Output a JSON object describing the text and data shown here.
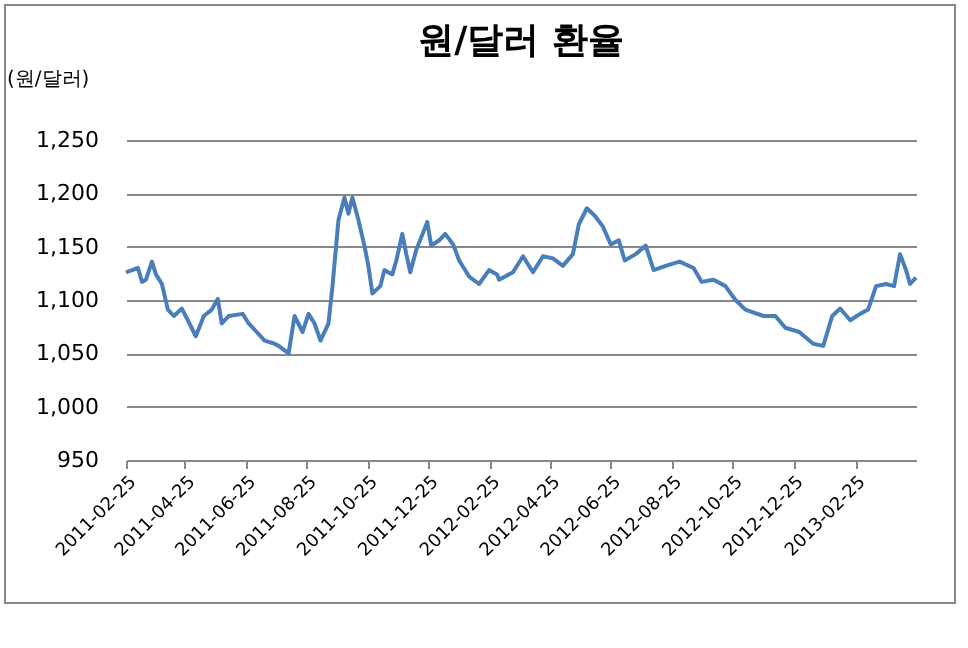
{
  "chart_data": {
    "type": "line",
    "title": "원/달러 환율",
    "ylabel": "(원/달러)",
    "x": [
      "2011-02-25",
      "2011-03-03",
      "2011-03-09",
      "2011-03-13",
      "2011-03-17",
      "2011-03-23",
      "2011-03-27",
      "2011-04-02",
      "2011-04-08",
      "2011-04-14",
      "2011-04-22",
      "2011-04-28",
      "2011-05-06",
      "2011-05-14",
      "2011-05-22",
      "2011-05-28",
      "2011-06-01",
      "2011-06-08",
      "2011-06-22",
      "2011-06-28",
      "2011-07-06",
      "2011-07-14",
      "2011-07-24",
      "2011-07-28",
      "2011-08-07",
      "2011-08-13",
      "2011-08-21",
      "2011-08-27",
      "2011-09-02",
      "2011-09-08",
      "2011-09-16",
      "2011-09-20",
      "2011-09-26",
      "2011-10-02",
      "2011-10-06",
      "2011-10-10",
      "2011-10-16",
      "2011-10-22",
      "2011-10-26",
      "2011-10-30",
      "2011-11-07",
      "2011-11-11",
      "2011-11-19",
      "2011-11-23",
      "2011-11-29",
      "2011-12-03",
      "2011-12-07",
      "2011-12-13",
      "2011-12-24",
      "2011-12-28",
      "2012-01-05",
      "2012-01-11",
      "2012-01-19",
      "2012-01-25",
      "2012-02-04",
      "2012-02-14",
      "2012-02-24",
      "2012-03-03",
      "2012-03-05",
      "2012-03-19",
      "2012-03-29",
      "2012-04-08",
      "2012-04-18",
      "2012-04-28",
      "2012-05-08",
      "2012-05-18",
      "2012-05-24",
      "2012-06-01",
      "2012-06-09",
      "2012-06-17",
      "2012-06-25",
      "2012-07-03",
      "2012-07-09",
      "2012-07-20",
      "2012-07-30",
      "2012-08-07",
      "2012-08-19",
      "2012-09-02",
      "2012-09-16",
      "2012-09-24",
      "2012-10-06",
      "2012-10-18",
      "2012-10-28",
      "2012-11-07",
      "2012-11-25",
      "2012-12-07",
      "2012-12-17",
      "2012-12-31",
      "2013-01-14",
      "2013-01-24",
      "2013-02-02",
      "2013-02-10",
      "2013-02-20",
      "2013-03-02",
      "2013-03-10",
      "2013-03-18",
      "2013-03-28",
      "2013-04-05",
      "2013-04-11",
      "2013-04-17",
      "2013-04-21",
      "2013-04-27"
    ],
    "series": [
      {
        "color": "#4a7ebb",
        "values": [
          1126,
          1128,
          1130,
          1117,
          1119,
          1136,
          1124,
          1115,
          1091,
          1085,
          1092,
          1081,
          1066,
          1085,
          1091,
          1101,
          1078,
          1085,
          1087,
          1078,
          1070,
          1062,
          1059,
          1057,
          1050,
          1085,
          1070,
          1087,
          1078,
          1062,
          1078,
          1113,
          1175,
          1196,
          1181,
          1196,
          1175,
          1151,
          1132,
          1106,
          1113,
          1128,
          1124,
          1137,
          1162,
          1143,
          1126,
          1147,
          1173,
          1151,
          1156,
          1162,
          1152,
          1137,
          1122,
          1115,
          1128,
          1124,
          1119,
          1126,
          1141,
          1126,
          1141,
          1139,
          1132,
          1143,
          1171,
          1186,
          1179,
          1169,
          1152,
          1156,
          1137,
          1143,
          1151,
          1128,
          1132,
          1136,
          1130,
          1117,
          1119,
          1113,
          1100,
          1091,
          1085,
          1085,
          1074,
          1070,
          1059,
          1057,
          1085,
          1092,
          1081,
          1087,
          1091,
          1113,
          1115,
          1113,
          1143,
          1128,
          1115,
          1121
        ]
      }
    ],
    "xlim": [
      "2011-02-25",
      "2013-04-27"
    ],
    "xticks": [
      "2011-02-25",
      "2011-04-25",
      "2011-06-25",
      "2011-08-25",
      "2011-10-25",
      "2011-12-25",
      "2012-02-25",
      "2012-04-25",
      "2012-06-25",
      "2012-08-25",
      "2012-10-25",
      "2012-12-25",
      "2013-02-25"
    ],
    "ylim": [
      950,
      1250
    ],
    "yticks": [
      950,
      {
        "value": 1000,
        "label": "1,000"
      },
      {
        "value": 1050,
        "label": "1,050"
      },
      {
        "value": 1100,
        "label": "1,100"
      },
      {
        "value": 1150,
        "label": "1,150"
      },
      {
        "value": 1200,
        "label": "1,200"
      },
      {
        "value": 1250,
        "label": "1,250"
      }
    ],
    "grid": "y"
  }
}
